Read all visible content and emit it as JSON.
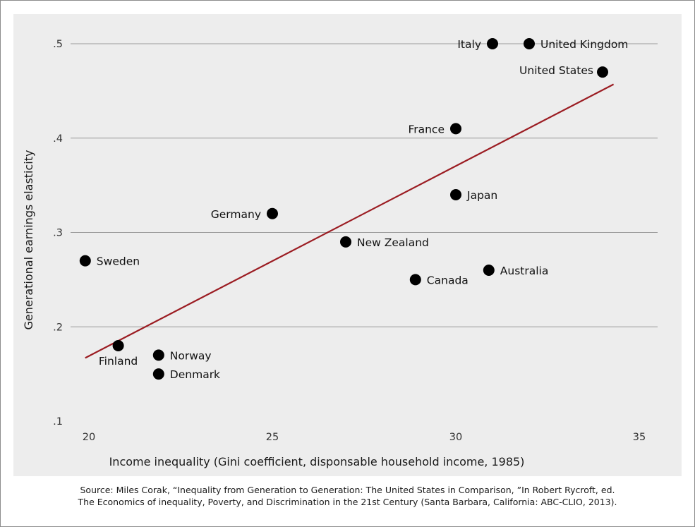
{
  "chart_data": {
    "type": "scatter",
    "xlabel": "Income inequality (Gini coefficient, disponsable household income, 1985)",
    "ylabel": "Generational earnings elasticity",
    "xlim": [
      19.5,
      35.5
    ],
    "ylim": [
      0.1,
      0.5
    ],
    "x_ticks": [
      {
        "value": 20,
        "label": "20"
      },
      {
        "value": 25,
        "label": "25"
      },
      {
        "value": 30,
        "label": "30"
      },
      {
        "value": 35,
        "label": "35"
      }
    ],
    "y_ticks": [
      {
        "value": 0.1,
        "label": ".1"
      },
      {
        "value": 0.2,
        "label": ".2"
      },
      {
        "value": 0.3,
        "label": ".3"
      },
      {
        "value": 0.4,
        "label": ".4"
      },
      {
        "value": 0.5,
        "label": ".5"
      }
    ],
    "grid": "horizontal",
    "points": [
      {
        "label": "Italy",
        "x": 31.0,
        "y": 0.5,
        "label_pos": "left"
      },
      {
        "label": "United Kingdom",
        "x": 32.0,
        "y": 0.5,
        "label_pos": "right"
      },
      {
        "label": "United States",
        "x": 34.0,
        "y": 0.47,
        "label_pos": "above-left"
      },
      {
        "label": "France",
        "x": 30.0,
        "y": 0.41,
        "label_pos": "left"
      },
      {
        "label": "Japan",
        "x": 30.0,
        "y": 0.34,
        "label_pos": "right"
      },
      {
        "label": "Germany",
        "x": 25.0,
        "y": 0.32,
        "label_pos": "left"
      },
      {
        "label": "New Zealand",
        "x": 27.0,
        "y": 0.29,
        "label_pos": "right"
      },
      {
        "label": "Sweden",
        "x": 19.9,
        "y": 0.27,
        "label_pos": "right"
      },
      {
        "label": "Australia",
        "x": 30.9,
        "y": 0.26,
        "label_pos": "right"
      },
      {
        "label": "Canada",
        "x": 28.9,
        "y": 0.25,
        "label_pos": "right-below"
      },
      {
        "label": "Finland",
        "x": 20.8,
        "y": 0.18,
        "label_pos": "below"
      },
      {
        "label": "Norway",
        "x": 21.9,
        "y": 0.17,
        "label_pos": "right"
      },
      {
        "label": "Denmark",
        "x": 21.9,
        "y": 0.15,
        "label_pos": "right"
      }
    ],
    "trend_line": {
      "x": [
        19.9,
        34.3
      ],
      "y": [
        0.167,
        0.457
      ],
      "color": "#9b1c22"
    },
    "point_color": "#000000",
    "background": "#ededed",
    "grid_color": "#9a9a9a"
  },
  "source": {
    "line1": "Source: Miles Corak, “Inequality from Generation to Generation: The United States in Comparison, ”In Robert Rycroft, ed.",
    "line2": "The Economics of inequality, Poverty, and Discrimination in the 21st Century (Santa Barbara, California: ABC-CLIO, 2013)."
  }
}
